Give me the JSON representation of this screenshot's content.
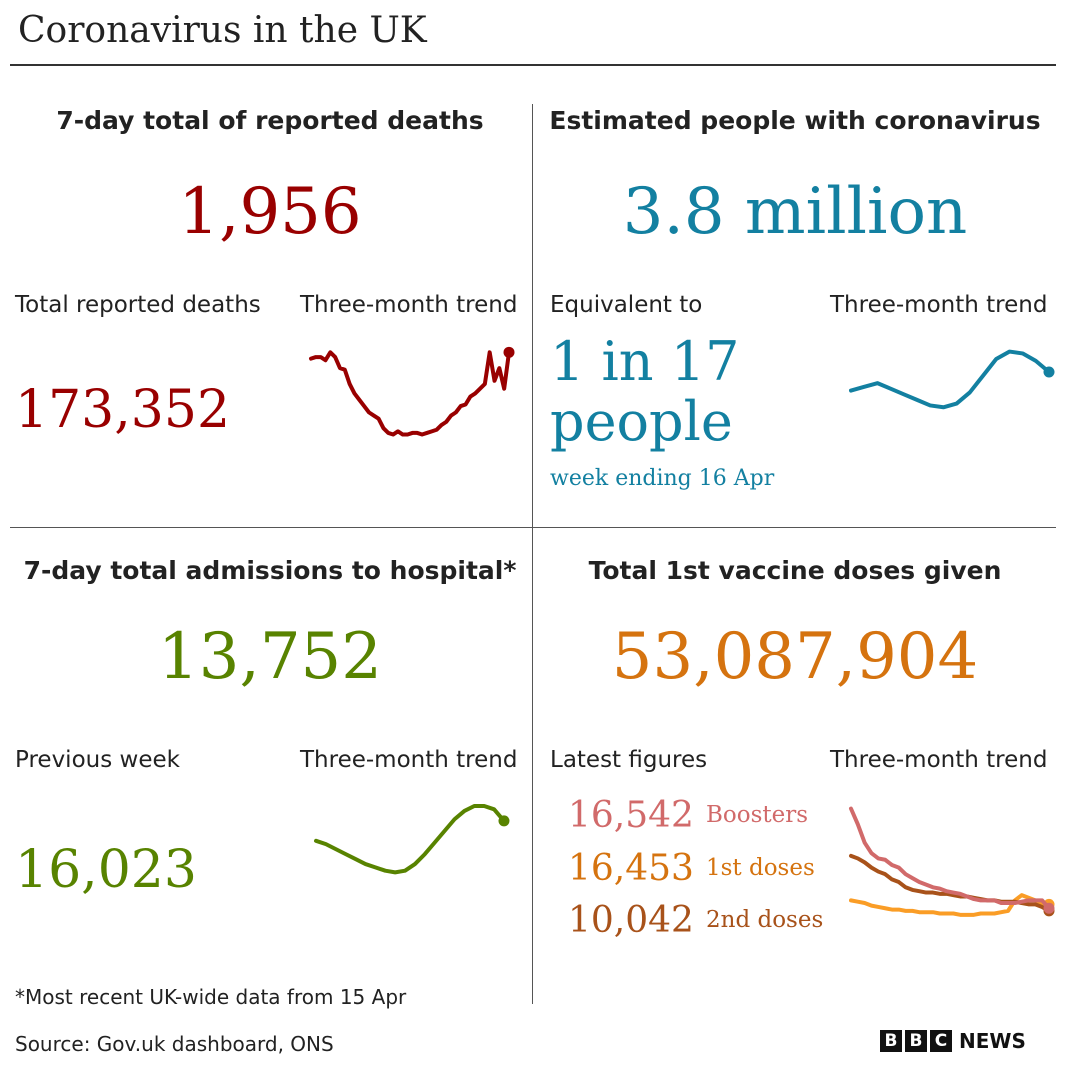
{
  "title": "Coronavirus in the UK",
  "colors": {
    "deaths": "#990000",
    "infections": "#1380a1",
    "hospital": "#588300",
    "boosters": "#d16a6a",
    "first_doses": "#d5730f",
    "second_doses": "#a8521a",
    "second_doses_line": "#fa9d26"
  },
  "deaths": {
    "heading": "7-day total of reported deaths",
    "value": "1,956",
    "total_label": "Total reported deaths",
    "total_value": "173,352",
    "trend_label": "Three-month trend"
  },
  "infections": {
    "heading": "Estimated people with coronavirus",
    "value": "3.8 million",
    "equiv_label": "Equivalent to",
    "equiv_value_line1": "1 in 17",
    "equiv_value_line2": "people",
    "week_note": "week ending 16 Apr",
    "trend_label": "Three-month trend"
  },
  "hospital": {
    "heading": "7-day total admissions to hospital*",
    "value": "13,752",
    "prev_label": "Previous week",
    "prev_value": "16,023",
    "trend_label": "Three-month trend"
  },
  "vaccine": {
    "heading": "Total 1st vaccine doses given",
    "value": "53,087,904",
    "latest_label": "Latest figures",
    "trend_label": "Three-month trend",
    "rows": [
      {
        "value": "16,542",
        "label": "Boosters"
      },
      {
        "value": "16,453",
        "label": "1st doses"
      },
      {
        "value": "10,042",
        "label": "2nd doses"
      }
    ]
  },
  "footnote": "*Most recent UK-wide data from 15 Apr",
  "source": "Source: Gov.uk dashboard, ONS",
  "logo": {
    "letters": [
      "B",
      "B",
      "C"
    ],
    "word": "NEWS"
  },
  "chart_data": [
    {
      "type": "line",
      "name": "deaths-trend",
      "values": [
        54,
        55,
        55,
        53,
        58,
        55,
        48,
        47,
        38,
        32,
        28,
        24,
        20,
        18,
        16,
        10,
        7,
        6,
        8,
        6,
        6,
        7,
        7,
        6,
        7,
        8,
        9,
        12,
        14,
        18,
        20,
        24,
        25,
        30,
        32,
        35,
        38,
        58,
        40,
        48,
        35,
        58
      ]
    },
    {
      "type": "line",
      "name": "infections-trend",
      "values": [
        28,
        30,
        32,
        29,
        26,
        23,
        20,
        19,
        21,
        27,
        36,
        45,
        49,
        48,
        44,
        38
      ]
    },
    {
      "type": "line",
      "name": "hospital-trend",
      "values": [
        38,
        36,
        33,
        30,
        27,
        24,
        22,
        20,
        19,
        20,
        24,
        30,
        37,
        44,
        51,
        56,
        59,
        59,
        57,
        50
      ]
    },
    {
      "type": "line",
      "name": "vaccine-trend",
      "series": [
        {
          "name": "Boosters",
          "values": [
            100,
            88,
            74,
            66,
            62,
            61,
            57,
            55,
            50,
            47,
            44,
            42,
            40,
            39,
            37,
            36,
            35,
            33,
            31,
            30,
            30,
            30,
            28,
            28,
            28,
            29,
            30,
            30,
            30,
            24
          ]
        },
        {
          "name": "1st doses",
          "values": [
            64,
            62,
            59,
            55,
            52,
            50,
            46,
            44,
            40,
            38,
            37,
            36,
            36,
            35,
            35,
            34,
            33,
            33,
            32,
            31,
            30,
            30,
            29,
            29,
            29,
            28,
            27,
            27,
            25,
            22
          ]
        },
        {
          "name": "2nd doses",
          "values": [
            30,
            29,
            28,
            26,
            25,
            24,
            23,
            23,
            22,
            22,
            21,
            21,
            21,
            20,
            20,
            20,
            19,
            19,
            19,
            20,
            20,
            20,
            21,
            22,
            30,
            34,
            32,
            30,
            28,
            27
          ]
        }
      ]
    }
  ]
}
